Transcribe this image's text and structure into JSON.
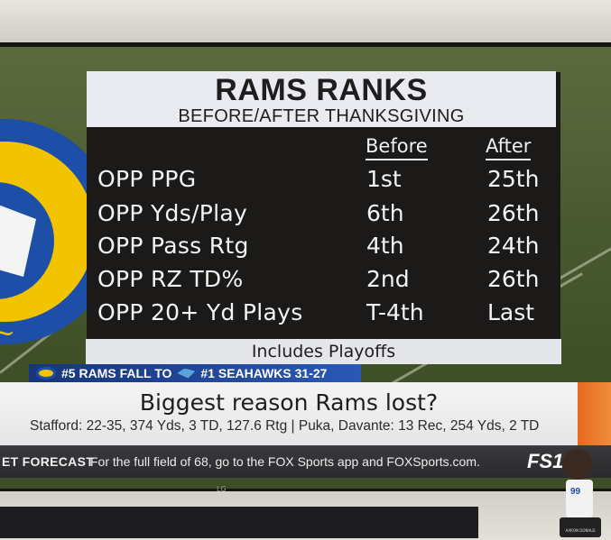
{
  "graphic": {
    "title": "RAMS RANKS",
    "subtitle": "BEFORE/AFTER THANKSGIVING",
    "columns": {
      "before": "Before",
      "after": "After"
    },
    "rows": [
      {
        "label": "OPP PPG",
        "before": "1st",
        "after": "25th"
      },
      {
        "label": "OPP Yds/Play",
        "before": "6th",
        "after": "26th"
      },
      {
        "label": "OPP Pass Rtg",
        "before": "4th",
        "after": "24th"
      },
      {
        "label": "OPP RZ TD%",
        "before": "2nd",
        "after": "26th"
      },
      {
        "label": "OPP 20+ Yd Plays",
        "before": "T-4th",
        "after": "Last"
      }
    ],
    "footnote": "Includes Playoffs"
  },
  "score_bar": {
    "team1": "#5 RAMS FALL TO",
    "team2": "#1 SEAHAWKS 31-27"
  },
  "lower_third": {
    "question": "Biggest reason Rams lost?",
    "stats": "Stafford: 22-35, 374 Yds, 3 TD, 127.6 Rtg | Puka, Davante: 13 Rec, 254 Yds, 2 TD"
  },
  "crawl": {
    "label": "ET FORECAST",
    "text": "For the full field of 68, go to the FOX Sports app and FOXSports.com.",
    "network": "FS1"
  },
  "tv_brand": "LG",
  "figure": {
    "number": "99",
    "nameplate": "AARON DONALD"
  },
  "colors": {
    "rams_blue": "#1d4fa8",
    "rams_gold": "#f2c400",
    "panel_dark": "#1c1a18",
    "title_light": "#e9ebf0",
    "accent_orange": "#e56a1e"
  }
}
